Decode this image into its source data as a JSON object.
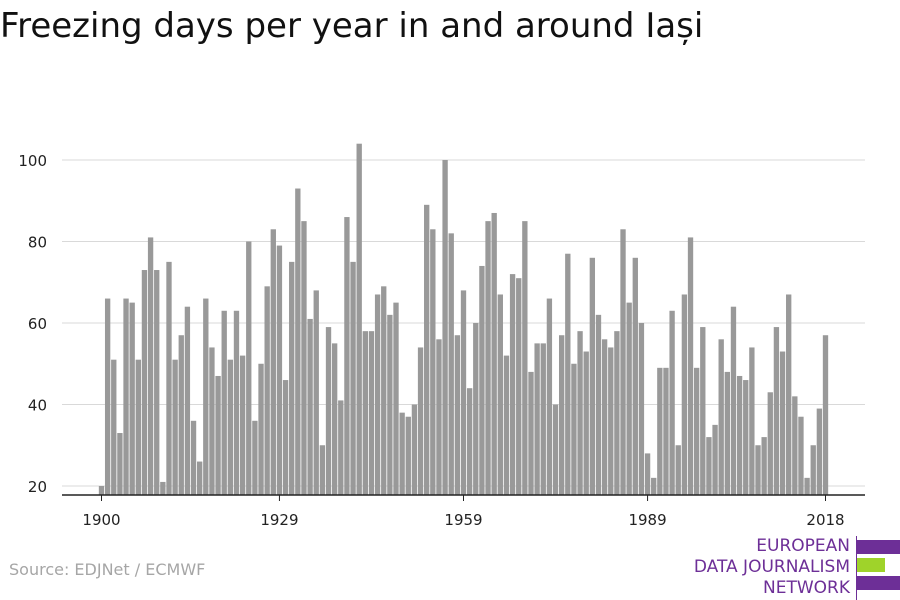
{
  "title": "Freezing days per year in and around Iași",
  "source": "Source: EDJNet / ECMWF",
  "logo": {
    "line1": "EUROPEAN",
    "line2": "DATA JOURNALISM",
    "line3": "NETWORK",
    "colors": {
      "purple": "#6d2f97",
      "green": "#9fd32a"
    }
  },
  "colors": {
    "bar": "#999999",
    "grid": "#d9d9d9",
    "axis": "#222222",
    "text": "#222222"
  },
  "chart_data": {
    "type": "bar",
    "title": "Freezing days per year in and around Iași",
    "xlabel": "",
    "ylabel": "",
    "ylim": [
      18,
      110
    ],
    "yticks": [
      20,
      40,
      60,
      80,
      100
    ],
    "xticks": [
      1900,
      1929,
      1959,
      1989,
      2018
    ],
    "grid": true,
    "x": [
      1900,
      1901,
      1902,
      1903,
      1904,
      1905,
      1906,
      1907,
      1908,
      1909,
      1910,
      1911,
      1912,
      1913,
      1914,
      1915,
      1916,
      1917,
      1918,
      1919,
      1920,
      1921,
      1922,
      1923,
      1924,
      1925,
      1926,
      1927,
      1928,
      1929,
      1930,
      1931,
      1932,
      1933,
      1934,
      1935,
      1936,
      1937,
      1938,
      1939,
      1940,
      1941,
      1942,
      1943,
      1944,
      1945,
      1946,
      1947,
      1948,
      1949,
      1950,
      1951,
      1952,
      1953,
      1954,
      1955,
      1956,
      1957,
      1958,
      1959,
      1960,
      1961,
      1962,
      1963,
      1964,
      1965,
      1966,
      1967,
      1968,
      1969,
      1970,
      1971,
      1972,
      1973,
      1974,
      1975,
      1976,
      1977,
      1978,
      1979,
      1980,
      1981,
      1982,
      1983,
      1984,
      1985,
      1986,
      1987,
      1988,
      1989,
      1990,
      1991,
      1992,
      1993,
      1994,
      1995,
      1996,
      1997,
      1998,
      1999,
      2000,
      2001,
      2002,
      2003,
      2004,
      2005,
      2006,
      2007,
      2008,
      2009,
      2010,
      2011,
      2012,
      2013,
      2014,
      2015,
      2016,
      2017,
      2018
    ],
    "values": [
      20,
      66,
      51,
      33,
      66,
      65,
      51,
      73,
      81,
      73,
      21,
      75,
      51,
      57,
      64,
      36,
      26,
      66,
      54,
      47,
      63,
      51,
      63,
      52,
      80,
      36,
      50,
      69,
      83,
      79,
      46,
      75,
      93,
      85,
      61,
      68,
      30,
      59,
      55,
      41,
      86,
      75,
      104,
      58,
      58,
      67,
      69,
      62,
      65,
      38,
      37,
      40,
      54,
      89,
      83,
      56,
      100,
      82,
      57,
      68,
      44,
      60,
      74,
      85,
      87,
      67,
      52,
      72,
      71,
      85,
      48,
      55,
      55,
      66,
      40,
      57,
      77,
      50,
      58,
      53,
      76,
      62,
      56,
      54,
      58,
      83,
      65,
      76,
      60,
      28,
      22,
      49,
      49,
      63,
      30,
      67,
      81,
      49,
      59,
      32,
      35,
      56,
      48,
      64,
      47,
      46,
      54,
      30,
      32,
      43,
      59,
      53,
      67,
      42,
      37,
      22,
      30,
      39,
      57
    ]
  }
}
